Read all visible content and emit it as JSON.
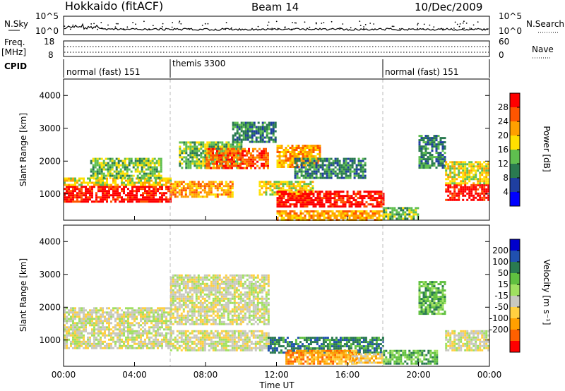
{
  "header": {
    "station": "Hokkaido (fitACF)",
    "beam": "Beam 14",
    "date": "10/Dec/2009"
  },
  "nsky_panel": {
    "left_label": "N.Sky",
    "left_ticks": [
      "10^5",
      "10^0"
    ],
    "right_ticks": [
      "10^5",
      "10^0"
    ],
    "right_label": "N.Search"
  },
  "freq_panel": {
    "left_label_1": "Freq.",
    "left_label_2": "[MHz]",
    "left_ticks": [
      "18",
      "8"
    ],
    "right_ticks": [
      "60",
      "0"
    ],
    "right_label": "Nave"
  },
  "cpid_panel": {
    "label": "CPID",
    "modes": [
      {
        "name": "normal (fast) 151",
        "start_hour": 0,
        "end_hour": 6
      },
      {
        "name": "themis 3300",
        "start_hour": 6,
        "end_hour": 18
      },
      {
        "name": "normal (fast) 151",
        "start_hour": 18,
        "end_hour": 24
      }
    ]
  },
  "chart_data": [
    {
      "type": "heatmap",
      "variable": "power",
      "ylabel": "Slant Range [km]",
      "yticks": [
        "1000",
        "2000",
        "3000",
        "4000"
      ],
      "ylim": [
        200,
        4500
      ],
      "xlim": [
        0,
        24
      ],
      "colorbar": {
        "label": "Power [dB]",
        "ticks": [
          "4",
          "8",
          "12",
          "16",
          "20",
          "24",
          "28"
        ],
        "colors": [
          "#0000ff",
          "#1f3fa0",
          "#2a7a50",
          "#5fbf4f",
          "#ffe000",
          "#ffa000",
          "#ff5500",
          "#ff0000"
        ]
      },
      "bands": [
        {
          "x0": 0,
          "x1": 6,
          "r0": 750,
          "r1": 1250,
          "level": 7
        },
        {
          "x0": 0,
          "x1": 6,
          "r0": 1250,
          "r1": 1500,
          "level": 4
        },
        {
          "x0": 1.5,
          "x1": 5.5,
          "r0": 1500,
          "r1": 2100,
          "level": 3
        },
        {
          "x0": 6,
          "x1": 9.5,
          "r0": 900,
          "r1": 1400,
          "level": 5
        },
        {
          "x0": 6.5,
          "x1": 10,
          "r0": 1800,
          "r1": 2600,
          "level": 3
        },
        {
          "x0": 8,
          "x1": 11.5,
          "r0": 1800,
          "r1": 2400,
          "level": 6
        },
        {
          "x0": 9.5,
          "x1": 12,
          "r0": 2600,
          "r1": 3200,
          "level": 2
        },
        {
          "x0": 11,
          "x1": 14,
          "r0": 1000,
          "r1": 1400,
          "level": 4
        },
        {
          "x0": 12,
          "x1": 14.5,
          "r0": 1800,
          "r1": 2500,
          "level": 5
        },
        {
          "x0": 13,
          "x1": 17,
          "r0": 1500,
          "r1": 2100,
          "level": 2
        },
        {
          "x0": 12,
          "x1": 18,
          "r0": 600,
          "r1": 1100,
          "level": 7
        },
        {
          "x0": 12,
          "x1": 18,
          "r0": 200,
          "r1": 500,
          "level": 5
        },
        {
          "x0": 18,
          "x1": 20,
          "r0": 250,
          "r1": 600,
          "level": 3
        },
        {
          "x0": 20,
          "x1": 21.5,
          "r0": 1800,
          "r1": 2800,
          "level": 2
        },
        {
          "x0": 21.5,
          "x1": 24,
          "r0": 800,
          "r1": 1300,
          "level": 7
        },
        {
          "x0": 21.5,
          "x1": 24,
          "r0": 1300,
          "r1": 2000,
          "level": 4
        }
      ]
    },
    {
      "type": "heatmap",
      "variable": "velocity",
      "ylabel": "Slant Range [km]",
      "yticks": [
        "1000",
        "2000",
        "3000",
        "4000"
      ],
      "ylim": [
        200,
        4500
      ],
      "xlim": [
        0,
        24
      ],
      "xlabel": "Time UT",
      "xticks": [
        "00:00",
        "04:00",
        "08:00",
        "12:00",
        "16:00",
        "20:00",
        "00:00"
      ],
      "colorbar": {
        "label": "Velocity [m s⁻¹]",
        "ticks": [
          "200",
          "100",
          "50",
          "15",
          "-15",
          "-50",
          "-100",
          "-200"
        ],
        "colors": [
          "#0000cc",
          "#2050b0",
          "#2a7a50",
          "#60c040",
          "#a0e060",
          "#c8c8c0",
          "#ffd040",
          "#ffa000",
          "#ff6000",
          "#ff0000"
        ]
      },
      "bands": [
        {
          "x0": 0,
          "x1": 6,
          "r0": 750,
          "r1": 1300,
          "level": 5
        },
        {
          "x0": 0,
          "x1": 6,
          "r0": 1300,
          "r1": 2000,
          "level": 5
        },
        {
          "x0": 6,
          "x1": 11.5,
          "r0": 1500,
          "r1": 3000,
          "level": 5
        },
        {
          "x0": 6,
          "x1": 11.5,
          "r0": 700,
          "r1": 1300,
          "level": 5
        },
        {
          "x0": 11.5,
          "x1": 18,
          "r0": 600,
          "r1": 1100,
          "level": 2
        },
        {
          "x0": 12.5,
          "x1": 16.5,
          "r0": 300,
          "r1": 700,
          "level": 7
        },
        {
          "x0": 16,
          "x1": 18,
          "r0": 300,
          "r1": 600,
          "level": 6
        },
        {
          "x0": 18,
          "x1": 21,
          "r0": 300,
          "r1": 700,
          "level": 3
        },
        {
          "x0": 20,
          "x1": 21.5,
          "r0": 1800,
          "r1": 2800,
          "level": 3
        },
        {
          "x0": 21.5,
          "x1": 24,
          "r0": 700,
          "r1": 1300,
          "level": 5
        }
      ]
    }
  ]
}
